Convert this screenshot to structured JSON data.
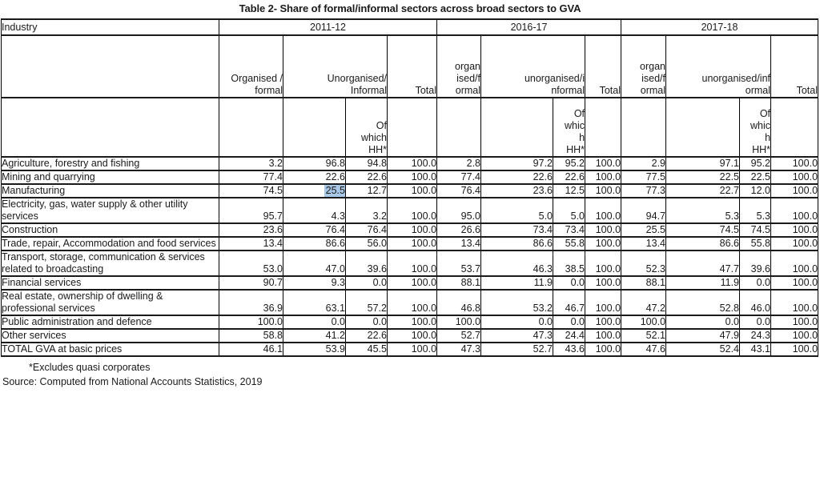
{
  "title": "Table 2- Share of formal/informal sectors across broad sectors to GVA",
  "table": {
    "industry_label": "Industry",
    "groups": [
      {
        "year": "2011-12",
        "organised": "Organised /\nformal",
        "unorganised": "Unorganised/\nInformal",
        "of_which_hh": "Of\nwhich\nHH*",
        "total": "Total"
      },
      {
        "year": "2016-17",
        "organised": "organ\nised/f\normal",
        "unorganised": "unorganised/i\nnformal",
        "of_which_hh": "Of\nwhic\nh\nHH*",
        "total": "Total"
      },
      {
        "year": "2017-18",
        "organised": "organ\nised/f\normal",
        "unorganised": "unorganised/inf\normal",
        "of_which_hh": "Of\nwhic\nh\nHH*",
        "total": "Total"
      }
    ],
    "rows": [
      {
        "industry": "Agriculture, forestry and fishing",
        "values": [
          "3.2",
          "96.8",
          "94.8",
          "100.0",
          "2.8",
          "97.2",
          "95.2",
          "100.0",
          "2.9",
          "97.1",
          "95.2",
          "100.0"
        ]
      },
      {
        "industry": "Mining and quarrying",
        "values": [
          "77.4",
          "22.6",
          "22.6",
          "100.0",
          "77.4",
          "22.6",
          "22.6",
          "100.0",
          "77.5",
          "22.5",
          "22.5",
          "100.0"
        ]
      },
      {
        "industry": "Manufacturing",
        "values": [
          "74.5",
          "25.5",
          "12.7",
          "100.0",
          "76.4",
          "23.6",
          "12.5",
          "100.0",
          "77.3",
          "22.7",
          "12.0",
          "100.0"
        ]
      },
      {
        "industry": "Electricity, gas, water supply & other utility services",
        "values": [
          "95.7",
          "4.3",
          "3.2",
          "100.0",
          "95.0",
          "5.0",
          "5.0",
          "100.0",
          "94.7",
          "5.3",
          "5.3",
          "100.0"
        ]
      },
      {
        "industry": "Construction",
        "values": [
          "23.6",
          "76.4",
          "76.4",
          "100.0",
          "26.6",
          "73.4",
          "73.4",
          "100.0",
          "25.5",
          "74.5",
          "74.5",
          "100.0"
        ]
      },
      {
        "industry": "Trade, repair, Accommodation and food services",
        "values": [
          "13.4",
          "86.6",
          "56.0",
          "100.0",
          "13.4",
          "86.6",
          "55.8",
          "100.0",
          "13.4",
          "86.6",
          "55.8",
          "100.0"
        ]
      },
      {
        "industry": "Transport, storage, communication & services related to broadcasting",
        "values": [
          "53.0",
          "47.0",
          "39.6",
          "100.0",
          "53.7",
          "46.3",
          "38.5",
          "100.0",
          "52.3",
          "47.7",
          "39.6",
          "100.0"
        ]
      },
      {
        "industry": "Financial services",
        "values": [
          "90.7",
          "9.3",
          "0.0",
          "100.0",
          "88.1",
          "11.9",
          "0.0",
          "100.0",
          "88.1",
          "11.9",
          "0.0",
          "100.0"
        ]
      },
      {
        "industry": "Real estate, ownership of dwelling & professional services",
        "values": [
          "36.9",
          "63.1",
          "57.2",
          "100.0",
          "46.8",
          "53.2",
          "46.7",
          "100.0",
          "47.2",
          "52.8",
          "46.0",
          "100.0"
        ]
      },
      {
        "industry": "Public administration and defence",
        "values": [
          "100.0",
          "0.0",
          "0.0",
          "100.0",
          "100.0",
          "0.0",
          "0.0",
          "100.0",
          "100.0",
          "0.0",
          "0.0",
          "100.0"
        ]
      },
      {
        "industry": "Other services",
        "values": [
          "58.8",
          "41.2",
          "22.6",
          "100.0",
          "52.7",
          "47.3",
          "24.4",
          "100.0",
          "52.1",
          "47.9",
          "24.3",
          "100.0"
        ]
      },
      {
        "industry": "TOTAL GVA at basic prices",
        "values": [
          "46.1",
          "53.9",
          "45.5",
          "100.0",
          "47.3",
          "52.7",
          "43.6",
          "100.0",
          "47.6",
          "52.4",
          "43.1",
          "100.0"
        ]
      }
    ],
    "highlight": {
      "row_index": 2,
      "value_index": 1,
      "color": "#a9c8e8"
    }
  },
  "footer": {
    "footnote": "*Excludes quasi corporates",
    "source": "Source: Computed from National Accounts Statistics, 2019"
  }
}
